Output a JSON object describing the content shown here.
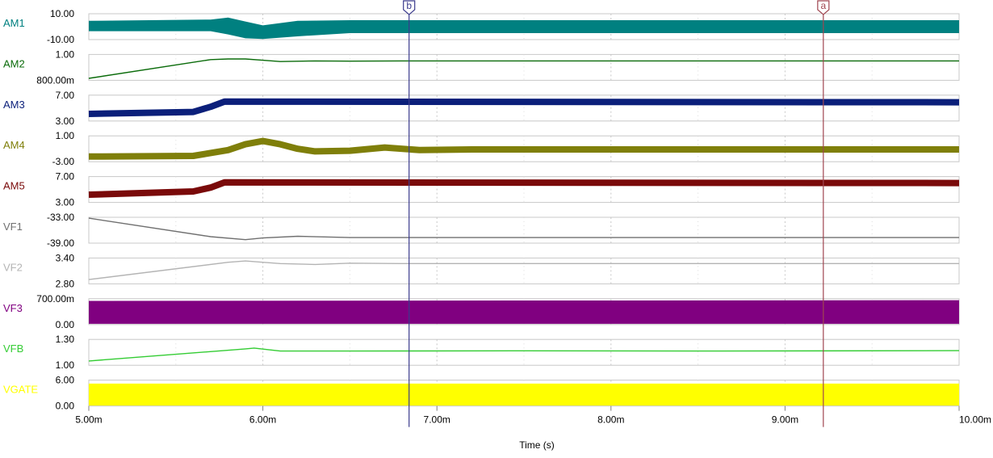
{
  "chart_data": {
    "type": "line",
    "xlabel": "Time (s)",
    "x_ticks": [
      "5.00m",
      "6.00m",
      "7.00m",
      "8.00m",
      "9.00m",
      "10.00m"
    ],
    "xlim": [
      0.005,
      0.01
    ],
    "grid": true,
    "cursors": [
      {
        "label": "b",
        "x": 0.00684,
        "color": "#3a3a8c"
      },
      {
        "label": "a",
        "x": 0.00922,
        "color": "#a04650"
      }
    ],
    "series": [
      {
        "name": "AM1",
        "color": "#008080",
        "top_label": "10.00",
        "bottom_label": "-10.00",
        "ylim": [
          -10,
          10
        ],
        "style": "band",
        "x": [
          0.005,
          0.0057,
          0.0058,
          0.0059,
          0.006,
          0.0062,
          0.0065,
          0.0068,
          0.01
        ],
        "lo": [
          -3.5,
          -3.5,
          -6.0,
          -9.0,
          -9.5,
          -7.5,
          -5.0,
          -5.0,
          -5.0
        ],
        "hi": [
          4.5,
          5.5,
          7.0,
          4.0,
          1.0,
          4.5,
          5.0,
          5.0,
          5.0
        ]
      },
      {
        "name": "AM2",
        "color": "#0a6b0a",
        "top_label": "1.00",
        "bottom_label": "800.00m",
        "ylim": [
          0.8,
          1.0
        ],
        "style": "line",
        "width": 1.4,
        "x": [
          0.005,
          0.0057,
          0.0058,
          0.0059,
          0.006,
          0.0061,
          0.0063,
          0.0065,
          0.0068,
          0.01
        ],
        "y": [
          0.815,
          0.96,
          0.965,
          0.965,
          0.955,
          0.945,
          0.95,
          0.948,
          0.95,
          0.95
        ]
      },
      {
        "name": "AM3",
        "color": "#0b1f7a",
        "top_label": "7.00",
        "bottom_label": "3.00",
        "ylim": [
          3,
          7
        ],
        "style": "line",
        "width": 8,
        "x": [
          0.005,
          0.0056,
          0.0057,
          0.00578,
          0.01
        ],
        "y": [
          4.1,
          4.4,
          5.2,
          6.0,
          5.9
        ]
      },
      {
        "name": "AM4",
        "color": "#7f7f0a",
        "top_label": "1.00",
        "bottom_label": "-3.00",
        "ylim": [
          -3,
          1
        ],
        "style": "line",
        "width": 8,
        "x": [
          0.005,
          0.0056,
          0.0058,
          0.0059,
          0.006,
          0.0061,
          0.0062,
          0.0063,
          0.0065,
          0.0067,
          0.0069,
          0.0072,
          0.01
        ],
        "y": [
          -2.2,
          -2.1,
          -1.2,
          -0.3,
          0.2,
          -0.3,
          -1.0,
          -1.4,
          -1.3,
          -0.8,
          -1.2,
          -1.1,
          -1.1
        ]
      },
      {
        "name": "AM5",
        "color": "#7a0a0a",
        "top_label": "7.00",
        "bottom_label": "3.00",
        "ylim": [
          3,
          7
        ],
        "style": "line",
        "width": 8,
        "x": [
          0.005,
          0.0056,
          0.0057,
          0.00578,
          0.01
        ],
        "y": [
          4.2,
          4.7,
          5.3,
          6.1,
          6.0
        ]
      },
      {
        "name": "VF1",
        "color": "#707070",
        "top_label": "-33.00",
        "bottom_label": "-39.00",
        "ylim": [
          -39,
          -33
        ],
        "style": "line",
        "width": 1.4,
        "x": [
          0.005,
          0.0057,
          0.0059,
          0.006,
          0.0062,
          0.0065,
          0.01
        ],
        "y": [
          -33.2,
          -37.5,
          -38.2,
          -37.8,
          -37.4,
          -37.7,
          -37.7
        ]
      },
      {
        "name": "VF2",
        "color": "#b4b4b4",
        "top_label": "3.40",
        "bottom_label": "2.80",
        "ylim": [
          2.8,
          3.4
        ],
        "style": "line",
        "width": 1.4,
        "x": [
          0.005,
          0.0058,
          0.0059,
          0.006,
          0.0061,
          0.0063,
          0.0065,
          0.0068,
          0.01
        ],
        "y": [
          2.9,
          3.3,
          3.33,
          3.3,
          3.27,
          3.25,
          3.28,
          3.27,
          3.27
        ]
      },
      {
        "name": "VF3",
        "color": "#800080",
        "top_label": "700.00m",
        "bottom_label": "0.00",
        "ylim": [
          0,
          0.7
        ],
        "style": "band",
        "x": [
          0.005,
          0.01
        ],
        "lo": [
          0.02,
          0.02
        ],
        "hi": [
          0.64,
          0.66
        ]
      },
      {
        "name": "VFB",
        "color": "#33cc33",
        "top_label": "1.30",
        "bottom_label": "1.00",
        "ylim": [
          1.0,
          1.3
        ],
        "style": "line",
        "width": 1.4,
        "x": [
          0.005,
          0.0059,
          0.00595,
          0.0061,
          0.0065,
          0.0075,
          0.0085,
          0.01
        ],
        "y": [
          1.05,
          1.19,
          1.2,
          1.165,
          1.165,
          1.168,
          1.165,
          1.17
        ]
      },
      {
        "name": "VGATE",
        "color": "#ffff00",
        "top_label": "6.00",
        "bottom_label": "0.00",
        "ylim": [
          0,
          6
        ],
        "style": "band",
        "x": [
          0.005,
          0.01
        ],
        "lo": [
          0.1,
          0.1
        ],
        "hi": [
          5.2,
          5.2
        ]
      }
    ]
  }
}
